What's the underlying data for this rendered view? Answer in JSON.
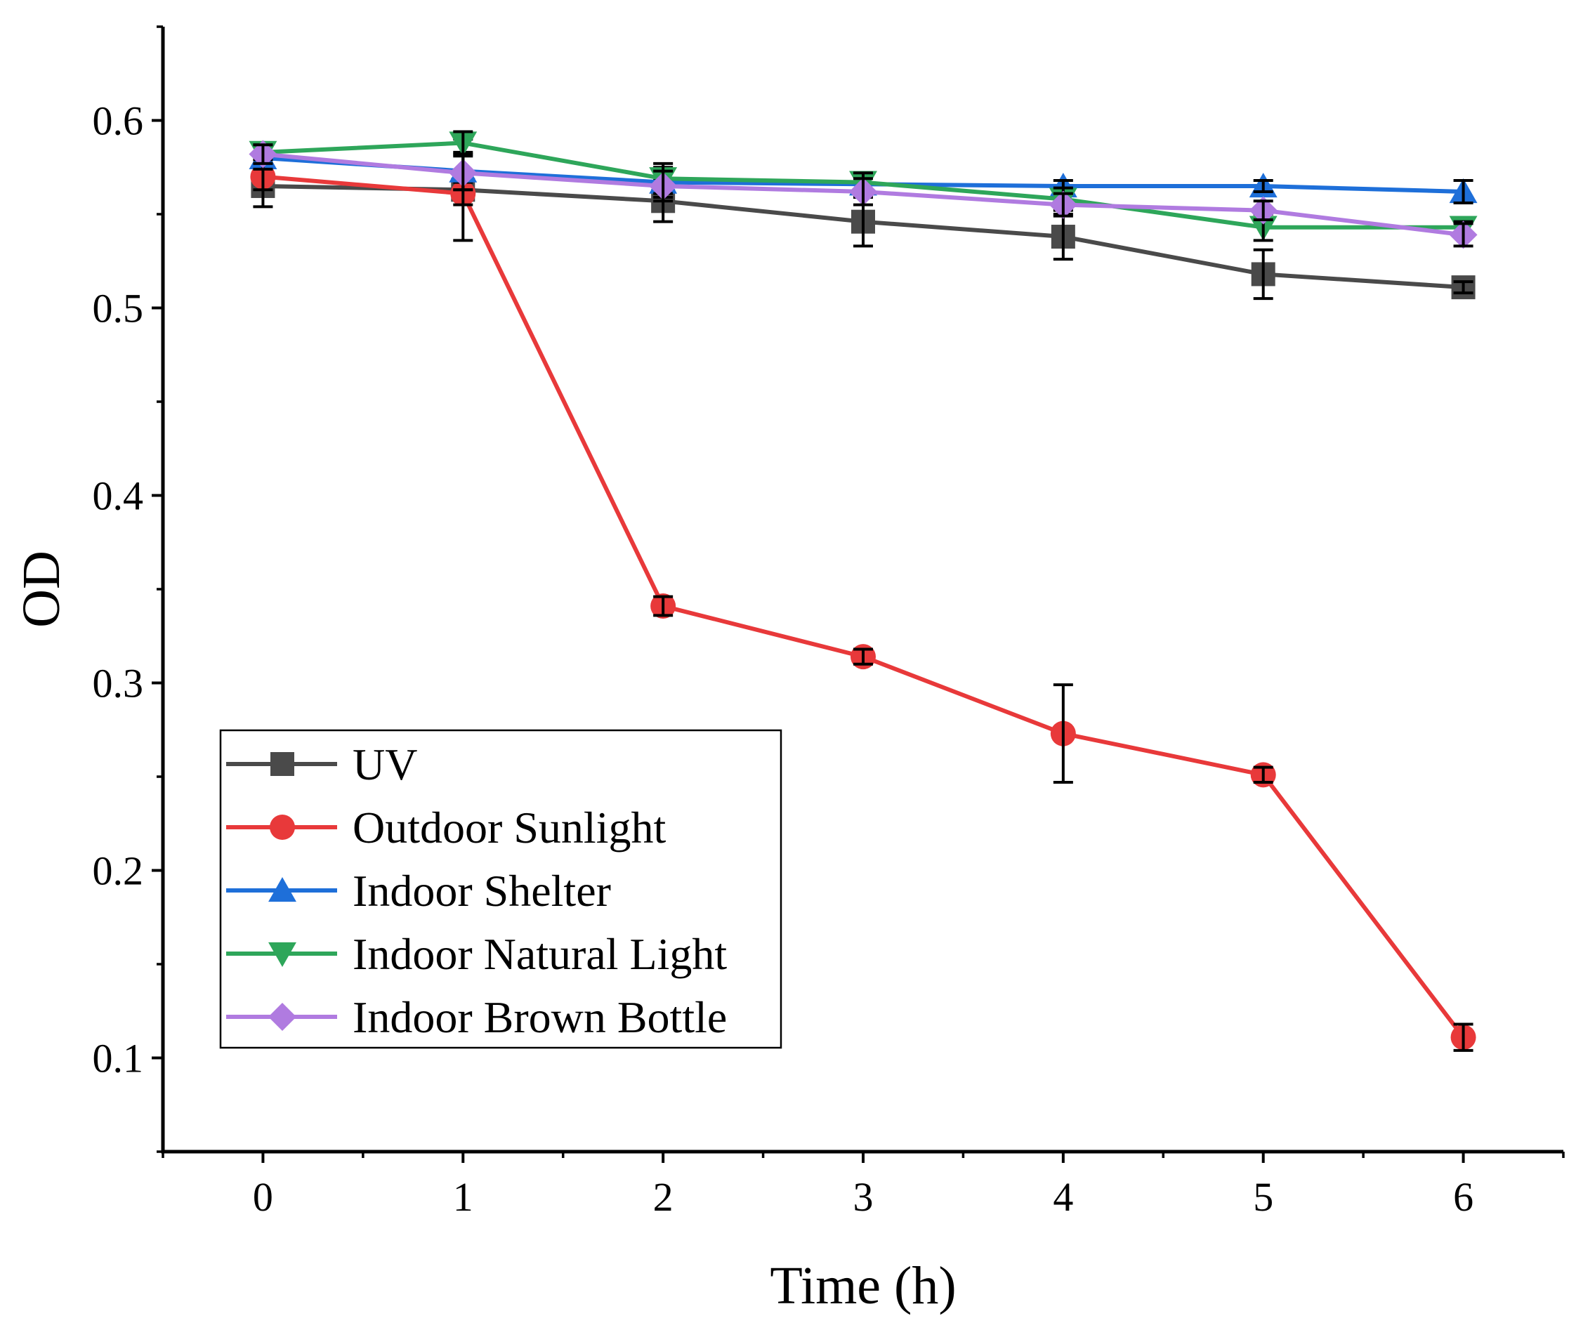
{
  "chart_data": {
    "type": "line",
    "title": "",
    "xlabel": "Time (h)",
    "ylabel": "OD",
    "xlim": [
      -0.5,
      6.5
    ],
    "ylim": [
      0.05,
      0.65
    ],
    "x": [
      0,
      1,
      2,
      3,
      4,
      5,
      6
    ],
    "x_tick_labels": [
      "0",
      "1",
      "2",
      "3",
      "4",
      "5",
      "6"
    ],
    "y_ticks": [
      0.1,
      0.2,
      0.3,
      0.4,
      0.5,
      0.6
    ],
    "y_tick_labels": [
      "0.1",
      "0.2",
      "0.3",
      "0.4",
      "0.5",
      "0.6"
    ],
    "grid": false,
    "legend_position": "bottom-left",
    "series": [
      {
        "name": "UV",
        "color": "#4a4a4a",
        "marker": "square",
        "values": [
          0.565,
          0.563,
          0.557,
          0.546,
          0.538,
          0.518,
          0.511
        ],
        "errors": [
          0.011,
          0.027,
          0.011,
          0.013,
          0.012,
          0.013,
          0.003
        ]
      },
      {
        "name": "Outdoor Sunlight",
        "color": "#e8393a",
        "marker": "circle",
        "values": [
          0.57,
          0.561,
          0.341,
          0.314,
          0.273,
          0.251,
          0.111
        ],
        "errors": [
          0.007,
          0.006,
          0.005,
          0.004,
          0.026,
          0.004,
          0.007
        ]
      },
      {
        "name": "Indoor Shelter",
        "color": "#1e6fd9",
        "marker": "triangle-up",
        "values": [
          0.58,
          0.573,
          0.567,
          0.566,
          0.565,
          0.565,
          0.562
        ],
        "errors": [
          0.006,
          0.01,
          0.008,
          0.004,
          0.003,
          0.003,
          0.006
        ]
      },
      {
        "name": "Indoor Natural Light",
        "color": "#2ea65a",
        "marker": "triangle-down",
        "values": [
          0.583,
          0.588,
          0.569,
          0.567,
          0.558,
          0.543,
          0.543
        ],
        "errors": [
          0.004,
          0.006,
          0.008,
          0.005,
          0.006,
          0.007,
          0.003
        ]
      },
      {
        "name": "Indoor Brown Bottle",
        "color": "#b07be0",
        "marker": "diamond",
        "values": [
          0.582,
          0.572,
          0.565,
          0.562,
          0.555,
          0.552,
          0.539
        ],
        "errors": [
          0.005,
          0.009,
          0.008,
          0.007,
          0.006,
          0.005,
          0.006
        ]
      }
    ]
  }
}
